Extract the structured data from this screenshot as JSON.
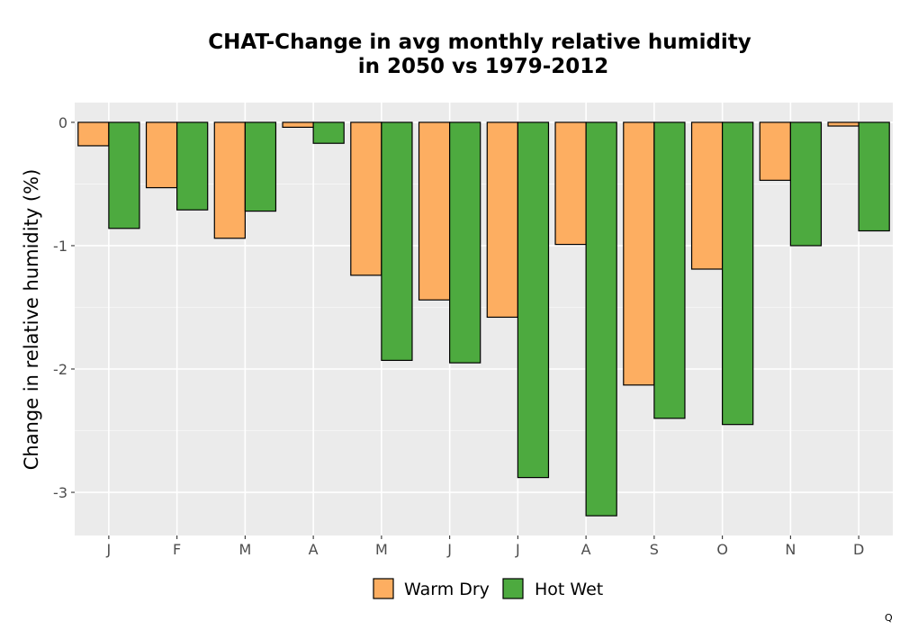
{
  "chart_data": {
    "type": "bar",
    "title": [
      "CHAT-Change in avg monthly relative humidity",
      "in 2050 vs 1979-2012"
    ],
    "xlabel": "",
    "ylabel": "Change in relative humidity (%)",
    "categories": [
      "J",
      "F",
      "M",
      "A",
      "M",
      "J",
      "J",
      "A",
      "S",
      "O",
      "N",
      "D"
    ],
    "ylim": [
      -3.35,
      0.16
    ],
    "yticks": [
      0,
      -1,
      -2,
      -3
    ],
    "ytick_labels": [
      "0",
      "-1",
      "-2",
      "-3"
    ],
    "grid": true,
    "legend_position": "bottom",
    "series": [
      {
        "name": "Warm Dry",
        "color": "#fdae61",
        "values": [
          -0.19,
          -0.53,
          -0.94,
          -0.04,
          -1.24,
          -1.44,
          -1.58,
          -0.99,
          -2.13,
          -1.19,
          -0.47,
          -0.03
        ]
      },
      {
        "name": "Hot Wet",
        "color": "#4daa3f",
        "values": [
          -0.86,
          -0.71,
          -0.72,
          -0.17,
          -1.93,
          -1.95,
          -2.88,
          -3.19,
          -2.4,
          -2.45,
          -1.0,
          -0.88
        ]
      }
    ]
  },
  "corner_mark": "Q"
}
